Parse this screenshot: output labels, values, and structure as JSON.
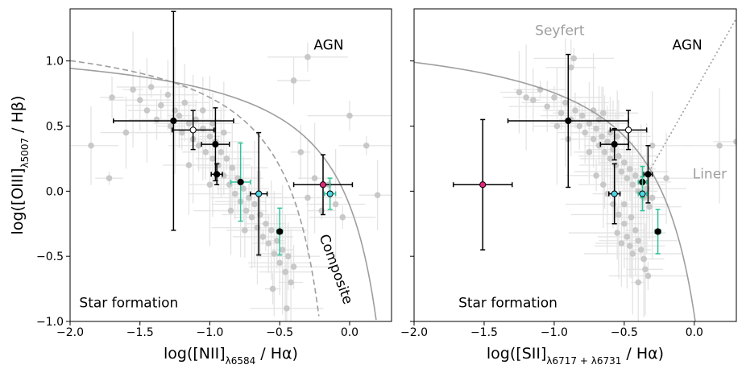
{
  "chart_data": [
    {
      "type": "scatter",
      "xlabel": {
        "pre": "log([NII]",
        "sub": "λ6584",
        "post": " / Hα)"
      },
      "ylabel": {
        "pre": "log([OIII]",
        "sub": "λ5007",
        "post": " / Hβ)"
      },
      "xlim": [
        -2.0,
        0.3
      ],
      "ylim": [
        -1.0,
        1.4
      ],
      "xticks": [
        -2.0,
        -1.5,
        -1.0,
        -0.5,
        0.0
      ],
      "xtick_labels": [
        "−2.0",
        "−1.5",
        "−1.0",
        "−0.5",
        "0.0"
      ],
      "yticks": [
        -1.0,
        -0.5,
        0.0,
        0.5,
        1.0
      ],
      "ytick_labels": [
        "−1.0",
        "−0.5",
        "0.0",
        "0.5",
        "1.0"
      ],
      "grid": false,
      "annotations": [
        {
          "text": "AGN",
          "x": -0.15,
          "y": 1.12,
          "color": "#000000",
          "rotate": 0
        },
        {
          "text": "Composite",
          "x": -0.1,
          "y": -0.6,
          "color": "#000000",
          "rotate": 70
        },
        {
          "text": "Star formation",
          "x": -1.58,
          "y": -0.86,
          "color": "#000000",
          "rotate": 0
        }
      ],
      "curves": [
        {
          "name": "Kewley 2001 maximum starburst",
          "formula": "kewley_nii",
          "style": "solid",
          "color": "#9e9e9e",
          "xrange": [
            -2.0,
            0.19
          ]
        },
        {
          "name": "Kauffmann 2003",
          "formula": "kauffmann_nii",
          "style": "dashed",
          "color": "#9e9e9e",
          "xrange": [
            -2.0,
            -0.22
          ]
        }
      ],
      "background": {
        "color": "#c8c8c8",
        "points": [
          [
            -1.85,
            0.35
          ],
          [
            -1.7,
            0.72
          ],
          [
            -1.6,
            0.45
          ],
          [
            -1.55,
            0.78
          ],
          [
            -1.5,
            0.7
          ],
          [
            -1.45,
            0.62
          ],
          [
            -1.42,
            0.8
          ],
          [
            -1.38,
            0.55
          ],
          [
            -1.35,
            0.66
          ],
          [
            -1.3,
            0.74
          ],
          [
            -1.28,
            0.5
          ],
          [
            -1.25,
            0.62
          ],
          [
            -1.22,
            0.58
          ],
          [
            -1.2,
            0.45
          ],
          [
            -1.18,
            0.68
          ],
          [
            -1.15,
            0.52
          ],
          [
            -1.12,
            0.4
          ],
          [
            -1.1,
            0.55
          ],
          [
            -1.08,
            0.35
          ],
          [
            -1.05,
            0.48
          ],
          [
            -1.03,
            0.3
          ],
          [
            -1.0,
            0.42
          ],
          [
            -0.98,
            0.25
          ],
          [
            -0.96,
            0.38
          ],
          [
            -0.94,
            0.2
          ],
          [
            -0.92,
            0.3
          ],
          [
            -0.9,
            0.12
          ],
          [
            -0.88,
            0.25
          ],
          [
            -0.86,
            0.05
          ],
          [
            -0.84,
            0.18
          ],
          [
            -0.82,
            -0.02
          ],
          [
            -0.8,
            0.1
          ],
          [
            -0.78,
            -0.08
          ],
          [
            -0.76,
            0.02
          ],
          [
            -0.74,
            -0.15
          ],
          [
            -0.72,
            -0.05
          ],
          [
            -0.7,
            -0.2
          ],
          [
            -0.68,
            -0.1
          ],
          [
            -0.66,
            -0.28
          ],
          [
            -0.64,
            -0.18
          ],
          [
            -0.62,
            -0.35
          ],
          [
            -0.6,
            -0.25
          ],
          [
            -0.58,
            -0.4
          ],
          [
            -0.56,
            -0.3
          ],
          [
            -0.54,
            -0.48
          ],
          [
            -0.52,
            -0.38
          ],
          [
            -0.5,
            -0.55
          ],
          [
            -0.48,
            -0.45
          ],
          [
            -0.46,
            -0.62
          ],
          [
            -0.44,
            -0.5
          ],
          [
            -0.42,
            -0.7
          ],
          [
            -0.4,
            -0.58
          ],
          [
            -0.55,
            -0.75
          ],
          [
            -0.45,
            -0.9
          ],
          [
            -0.3,
            -0.05
          ],
          [
            -0.25,
            0.1
          ],
          [
            -0.2,
            -0.15
          ],
          [
            -0.15,
            0.05
          ],
          [
            -0.1,
            -0.1
          ],
          [
            0.0,
            0.58
          ],
          [
            0.12,
            0.35
          ],
          [
            0.2,
            -0.03
          ],
          [
            -0.35,
            0.3
          ],
          [
            -0.4,
            0.85
          ],
          [
            -0.3,
            1.03
          ],
          [
            -1.72,
            0.1
          ],
          [
            -0.05,
            -0.2
          ],
          [
            -1.05,
            0.62
          ],
          [
            -0.98,
            0.52
          ],
          [
            -0.9,
            0.45
          ],
          [
            -1.15,
            0.2
          ],
          [
            -1.0,
            0.05
          ],
          [
            -0.85,
            -0.15
          ],
          [
            -0.75,
            -0.3
          ]
        ]
      },
      "points": [
        {
          "x": -1.26,
          "y": 0.54,
          "xerr": [
            0.43,
            0.43
          ],
          "yerr": [
            0.84,
            0.84
          ],
          "face": "#000000",
          "errcolor": "#000000"
        },
        {
          "x": -1.12,
          "y": 0.47,
          "xerr": [
            0.15,
            0.15
          ],
          "yerr": [
            0.15,
            0.15
          ],
          "face": "#ffffff",
          "errcolor": "#000000"
        },
        {
          "x": -0.96,
          "y": 0.36,
          "xerr": [
            0.1,
            0.1
          ],
          "yerr": [
            0.28,
            0.28
          ],
          "face": "#000000",
          "errcolor": "#000000"
        },
        {
          "x": -0.95,
          "y": 0.13,
          "xerr": [
            0.04,
            0.04
          ],
          "yerr": [
            0.08,
            0.08
          ],
          "face": "#000000",
          "errcolor": "#000000"
        },
        {
          "x": -0.78,
          "y": 0.07,
          "xerr": [
            0.07,
            0.07
          ],
          "yerr": [
            0.3,
            0.3
          ],
          "face": "#000000",
          "errcolor": "#2ec39a"
        },
        {
          "x": -0.65,
          "y": -0.02,
          "xerr": [
            0.06,
            0.06
          ],
          "yerr": [
            0.47,
            0.47
          ],
          "face": "#4dd6e3",
          "errcolor": "#000000"
        },
        {
          "x": -0.5,
          "y": -0.31,
          "xerr": [
            0.02,
            0.02
          ],
          "yerr": [
            0.18,
            0.18
          ],
          "face": "#000000",
          "errcolor": "#2ec39a"
        },
        {
          "x": -0.19,
          "y": 0.05,
          "xerr": [
            0.21,
            0.21
          ],
          "yerr": [
            0.23,
            0.23
          ],
          "face": "#e0277a",
          "errcolor": "#000000"
        },
        {
          "x": -0.14,
          "y": -0.02,
          "xerr": [
            0.04,
            0.04
          ],
          "yerr": [
            0.12,
            0.12
          ],
          "face": "#4dd6e3",
          "errcolor": "#2ec39a"
        }
      ]
    },
    {
      "type": "scatter",
      "xlabel": {
        "pre": "log([SII]",
        "sub": "λ6717 + λ6731",
        "post": " / Hα)"
      },
      "ylabel": null,
      "xlim": [
        -2.0,
        0.3
      ],
      "ylim": [
        -1.0,
        1.4
      ],
      "xticks": [
        -2.0,
        -1.5,
        -1.0,
        -0.5,
        0.0
      ],
      "xtick_labels": [
        "−2.0",
        "−1.5",
        "−1.0",
        "−0.5",
        "0.0"
      ],
      "yticks": [
        -1.0,
        -0.5,
        0.0,
        0.5,
        1.0
      ],
      "ytick_labels": [],
      "grid": false,
      "annotations": [
        {
          "text": "Seyfert",
          "x": -0.96,
          "y": 1.23,
          "color": "#9e9e9e",
          "rotate": 0
        },
        {
          "text": "AGN",
          "x": -0.05,
          "y": 1.12,
          "color": "#000000",
          "rotate": 0
        },
        {
          "text": "Liner",
          "x": 0.11,
          "y": 0.13,
          "color": "#9e9e9e",
          "rotate": 0
        },
        {
          "text": "Star formation",
          "x": -1.33,
          "y": -0.86,
          "color": "#000000",
          "rotate": 0
        }
      ],
      "curves": [
        {
          "name": "Kewley 2001 maximum starburst",
          "formula": "kewley_sii",
          "style": "solid",
          "color": "#9e9e9e",
          "xrange": [
            -2.0,
            0.02
          ]
        },
        {
          "name": "Seyfert/LINER line",
          "formula": "seyfert_liner",
          "style": "dotted",
          "color": "#9e9e9e",
          "xrange": [
            -0.31,
            0.3
          ]
        }
      ],
      "background": {
        "color": "#c8c8c8",
        "points": [
          [
            -1.15,
            0.7
          ],
          [
            -1.1,
            0.78
          ],
          [
            -1.05,
            0.65
          ],
          [
            -1.0,
            0.72
          ],
          [
            -0.95,
            0.6
          ],
          [
            -0.92,
            0.68
          ],
          [
            -0.88,
            0.55
          ],
          [
            -0.85,
            0.62
          ],
          [
            -0.82,
            0.5
          ],
          [
            -0.8,
            0.58
          ],
          [
            -0.78,
            0.45
          ],
          [
            -0.75,
            0.52
          ],
          [
            -0.72,
            0.4
          ],
          [
            -0.7,
            0.48
          ],
          [
            -0.68,
            0.35
          ],
          [
            -0.66,
            0.42
          ],
          [
            -0.64,
            0.3
          ],
          [
            -0.62,
            0.38
          ],
          [
            -0.6,
            0.25
          ],
          [
            -0.58,
            0.32
          ],
          [
            -0.56,
            0.2
          ],
          [
            -0.54,
            0.27
          ],
          [
            -0.52,
            0.15
          ],
          [
            -0.5,
            0.22
          ],
          [
            -0.48,
            0.1
          ],
          [
            -0.46,
            0.17
          ],
          [
            -0.44,
            0.05
          ],
          [
            -0.42,
            0.12
          ],
          [
            -0.4,
            0.0
          ],
          [
            -0.38,
            0.07
          ],
          [
            -0.36,
            -0.05
          ],
          [
            -0.34,
            0.02
          ],
          [
            -0.32,
            -0.12
          ],
          [
            -0.3,
            -0.05
          ],
          [
            -0.45,
            -0.2
          ],
          [
            -0.42,
            -0.3
          ],
          [
            -0.4,
            -0.38
          ],
          [
            -0.38,
            -0.45
          ],
          [
            -0.36,
            -0.52
          ],
          [
            -0.5,
            -0.25
          ],
          [
            -0.48,
            -0.35
          ],
          [
            -0.46,
            -0.42
          ],
          [
            -0.44,
            -0.48
          ],
          [
            -0.55,
            -0.32
          ],
          [
            -0.52,
            -0.4
          ],
          [
            -0.35,
            -0.6
          ],
          [
            -0.33,
            -0.65
          ],
          [
            -0.4,
            -0.7
          ],
          [
            -0.72,
            0.62
          ],
          [
            -0.68,
            0.55
          ],
          [
            -0.65,
            0.6
          ],
          [
            -0.3,
            0.35
          ],
          [
            -0.55,
            0.42
          ],
          [
            -0.6,
            0.45
          ],
          [
            0.18,
            0.35
          ],
          [
            0.3,
            0.38
          ],
          [
            -0.2,
            0.1
          ],
          [
            -0.88,
            0.95
          ],
          [
            -0.86,
            1.02
          ],
          [
            -0.7,
            0.12
          ],
          [
            -0.65,
            0.05
          ],
          [
            -0.62,
            -0.02
          ],
          [
            -0.58,
            -0.1
          ],
          [
            -0.54,
            -0.18
          ],
          [
            -0.5,
            -0.1
          ],
          [
            -0.75,
            0.3
          ],
          [
            -1.2,
            0.72
          ],
          [
            -1.25,
            0.76
          ],
          [
            -0.98,
            0.5
          ],
          [
            -0.9,
            0.4
          ]
        ]
      },
      "points": [
        {
          "x": -0.9,
          "y": 0.54,
          "xerr": [
            0.43,
            0.43
          ],
          "yerr": [
            0.51,
            0.51
          ],
          "face": "#000000",
          "errcolor": "#000000"
        },
        {
          "x": -0.47,
          "y": 0.47,
          "xerr": [
            0.13,
            0.13
          ],
          "yerr": [
            0.15,
            0.15
          ],
          "face": "#ffffff",
          "errcolor": "#000000"
        },
        {
          "x": -0.57,
          "y": 0.36,
          "xerr": [
            0.1,
            0.1
          ],
          "yerr": [
            0.12,
            0.12
          ],
          "face": "#000000",
          "errcolor": "#000000"
        },
        {
          "x": -0.33,
          "y": 0.13,
          "xerr": [
            0.03,
            0.03
          ],
          "yerr": [
            0.22,
            0.22
          ],
          "face": "#000000",
          "errcolor": "#000000"
        },
        {
          "x": -0.37,
          "y": 0.07,
          "xerr": [
            0.03,
            0.03
          ],
          "yerr": [
            0.12,
            0.12
          ],
          "face": "#000000",
          "errcolor": "#2ec39a"
        },
        {
          "x": -0.57,
          "y": -0.02,
          "xerr": [
            0.04,
            0.04
          ],
          "yerr": [
            0.23,
            0.23
          ],
          "face": "#4dd6e3",
          "errcolor": "#000000"
        },
        {
          "x": -0.37,
          "y": -0.02,
          "xerr": [
            0.03,
            0.03
          ],
          "yerr": [
            0.13,
            0.13
          ],
          "face": "#4dd6e3",
          "errcolor": "#2ec39a"
        },
        {
          "x": -0.26,
          "y": -0.31,
          "xerr": [
            0.02,
            0.02
          ],
          "yerr": [
            0.17,
            0.17
          ],
          "face": "#000000",
          "errcolor": "#2ec39a"
        },
        {
          "x": -1.51,
          "y": 0.05,
          "xerr": [
            0.21,
            0.21
          ],
          "yerr": [
            0.5,
            0.5
          ],
          "face": "#e0277a",
          "errcolor": "#000000"
        }
      ]
    }
  ]
}
